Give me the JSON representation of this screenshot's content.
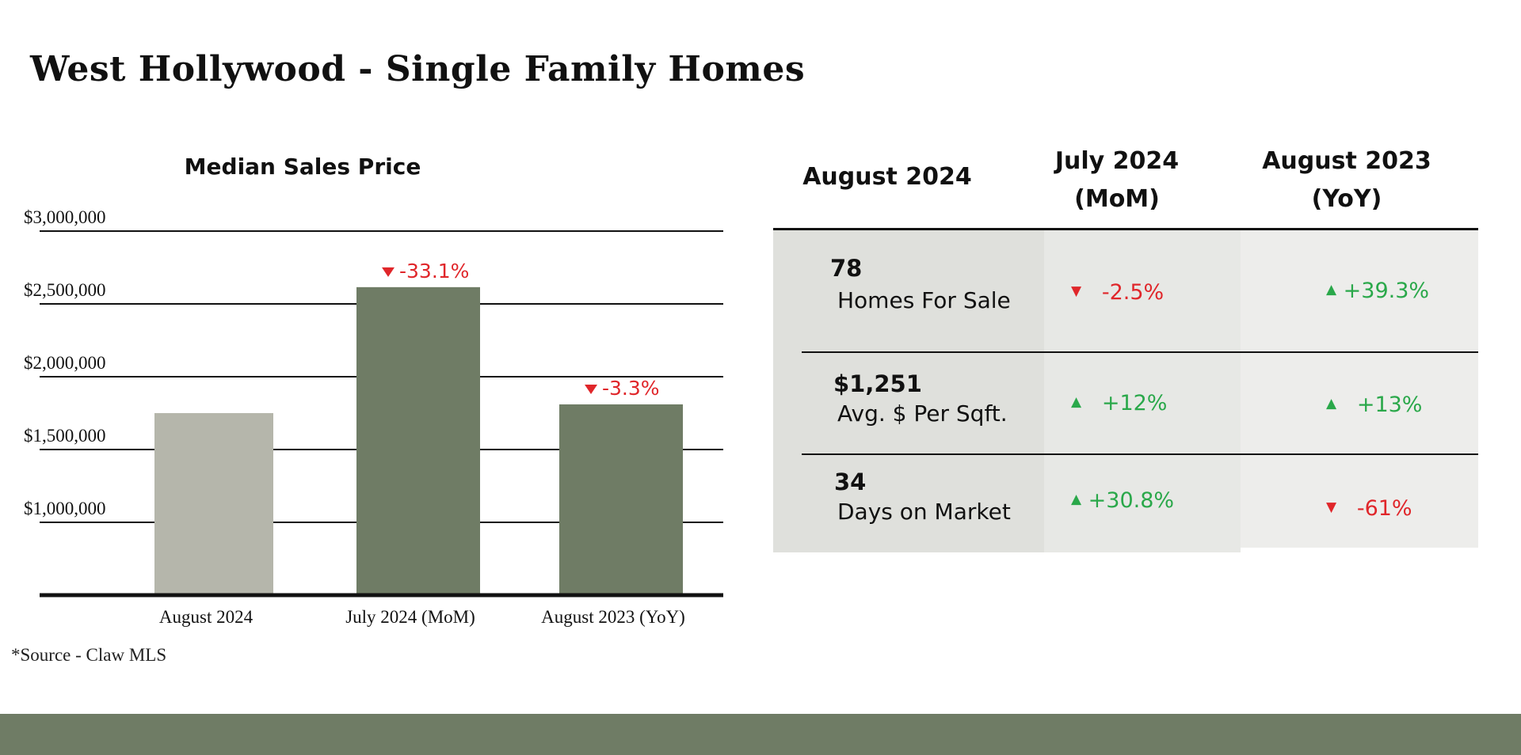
{
  "page": {
    "title": "West Hollywood - Single Family Homes",
    "source": "*Source - Claw MLS"
  },
  "colors": {
    "up": "#2aa84a",
    "down": "#e0262a",
    "bar_current": "#b5b6ab",
    "bar_compare": "#6f7c65",
    "footer": "#6f7c65"
  },
  "chart_data": {
    "type": "bar",
    "title": "Median Sales Price",
    "categories": [
      "August 2024",
      "July 2024 (MoM)",
      "August 2023 (YoY)"
    ],
    "values": [
      1750000,
      2615000,
      1810000
    ],
    "bar_colors": [
      "#b5b6ab",
      "#6f7c65",
      "#6f7c65"
    ],
    "annotations": [
      "",
      "-33.1%",
      "-3.3%"
    ],
    "y_ticks": [
      1000000,
      1500000,
      2000000,
      2500000,
      3000000
    ],
    "y_tick_labels": [
      "$1,000,000",
      "$1,500,000",
      "$2,000,000",
      "$2,500,000",
      "$3,000,000"
    ],
    "ylim": [
      500000,
      3000000
    ],
    "xlabel": "",
    "ylabel": "",
    "grid": true
  },
  "table": {
    "headers": [
      {
        "line1": "August 2024",
        "line2": ""
      },
      {
        "line1": "July 2024",
        "line2": "(MoM)"
      },
      {
        "line1": "August 2023",
        "line2": "(YoY)"
      }
    ],
    "rows": [
      {
        "value": "78",
        "label": "Homes For Sale",
        "mom": {
          "text": "-2.5%",
          "dir": "down"
        },
        "yoy": {
          "text": "+39.3%",
          "dir": "up"
        }
      },
      {
        "value": "$1,251",
        "label": "Avg. $ Per Sqft.",
        "mom": {
          "text": "+12%",
          "dir": "up"
        },
        "yoy": {
          "text": "+13%",
          "dir": "up"
        }
      },
      {
        "value": "34",
        "label": "Days on Market",
        "mom": {
          "text": "+30.8%",
          "dir": "up"
        },
        "yoy": {
          "text": "-61%",
          "dir": "down"
        }
      }
    ]
  }
}
